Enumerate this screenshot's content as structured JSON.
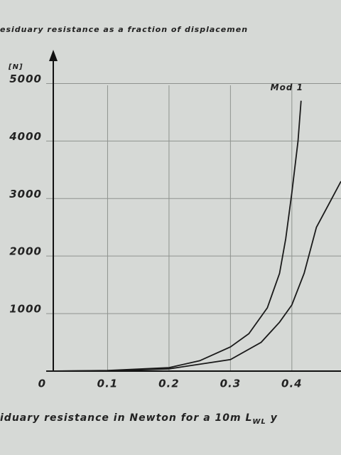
{
  "chart_data": {
    "type": "line",
    "title": "esiduary resistance as a fraction of displacemen",
    "caption": "iduary resistance in Newton for a 10m L",
    "caption_sub": "WL",
    "caption_tail": "y",
    "y_unit": "[N]",
    "series": [
      {
        "name": "Mod 1",
        "color": "#1a1a1a",
        "x": [
          0,
          0.1,
          0.2,
          0.25,
          0.3,
          0.33,
          0.36,
          0.38,
          0.39,
          0.4,
          0.41,
          0.415
        ],
        "values": [
          0,
          10,
          60,
          180,
          420,
          650,
          1100,
          1700,
          2300,
          3100,
          4000,
          4700
        ]
      },
      {
        "name": null,
        "color": "#1a1a1a",
        "x": [
          0,
          0.1,
          0.2,
          0.3,
          0.35,
          0.38,
          0.4,
          0.42,
          0.44,
          0.46,
          0.48
        ],
        "values": [
          0,
          5,
          40,
          200,
          500,
          850,
          1150,
          1700,
          2500,
          2900,
          3300
        ]
      }
    ],
    "xlim": [
      0,
      0.48
    ],
    "ylim": [
      0,
      5500
    ],
    "xticks": [
      0,
      0.1,
      0.2,
      0.3,
      0.4
    ],
    "yticks": [
      1000,
      2000,
      3000,
      4000,
      5000
    ],
    "grid": true
  }
}
